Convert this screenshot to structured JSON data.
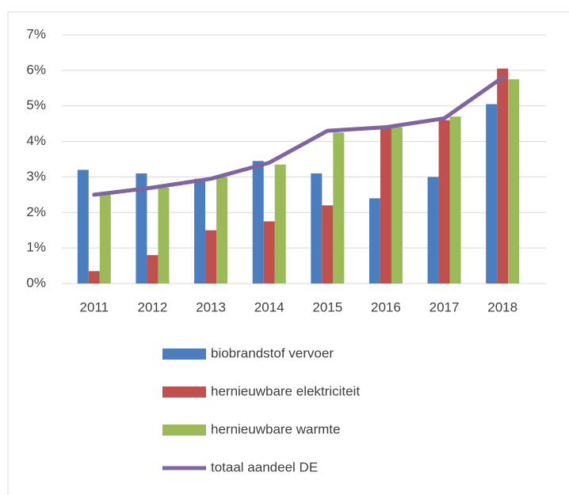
{
  "chart_data": {
    "type": "bar_line",
    "categories": [
      "2011",
      "2012",
      "2013",
      "2014",
      "2015",
      "2016",
      "2017",
      "2018"
    ],
    "series": [
      {
        "name": "biobrandstof vervoer",
        "type": "bar",
        "color": "#4a7ebf",
        "values": [
          3.2,
          3.1,
          2.95,
          3.45,
          3.1,
          2.4,
          3.0,
          5.05
        ]
      },
      {
        "name": "hernieuwbare elektriciteit",
        "type": "bar",
        "color": "#c0504d",
        "values": [
          0.35,
          0.8,
          1.5,
          1.75,
          2.2,
          4.4,
          4.6,
          6.05
        ]
      },
      {
        "name": "hernieuwbare warmte",
        "type": "bar",
        "color": "#9bbb59",
        "values": [
          2.5,
          2.7,
          3.0,
          3.35,
          4.25,
          4.4,
          4.7,
          5.75
        ]
      },
      {
        "name": "totaal aandeel DE",
        "type": "line",
        "color": "#8064a2",
        "values": [
          2.5,
          2.7,
          2.95,
          3.4,
          4.3,
          4.4,
          4.65,
          5.8
        ]
      }
    ],
    "ylim": [
      0,
      7
    ],
    "yticks": [
      {
        "value": 0,
        "label": "0%"
      },
      {
        "value": 1,
        "label": "1%"
      },
      {
        "value": 2,
        "label": "2%"
      },
      {
        "value": 3,
        "label": "3%"
      },
      {
        "value": 4,
        "label": "4%"
      },
      {
        "value": 5,
        "label": "5%"
      },
      {
        "value": 6,
        "label": "6%"
      },
      {
        "value": 7,
        "label": "7%"
      }
    ],
    "grid": true,
    "legend": "bottom"
  }
}
